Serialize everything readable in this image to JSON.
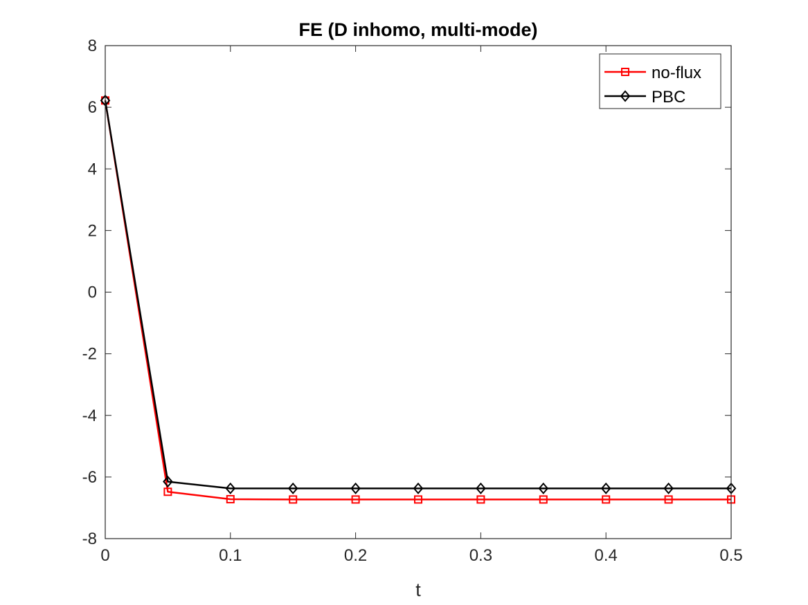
{
  "chart_data": {
    "type": "line",
    "title": "FE (D inhomo, multi-mode)",
    "xlabel": "t",
    "ylabel": "",
    "xlim": [
      0,
      0.5
    ],
    "ylim": [
      -8,
      8
    ],
    "x_ticks": [
      "0",
      "0.1",
      "0.2",
      "0.3",
      "0.4",
      "0.5"
    ],
    "y_ticks": [
      "-8",
      "-6",
      "-4",
      "-2",
      "0",
      "2",
      "4",
      "6",
      "8"
    ],
    "x": [
      0,
      0.05,
      0.1,
      0.15,
      0.2,
      0.25,
      0.3,
      0.35,
      0.4,
      0.45,
      0.5
    ],
    "series": [
      {
        "name": "no-flux",
        "color": "#ff0000",
        "marker": "square",
        "values": [
          6.22,
          -6.48,
          -6.72,
          -6.73,
          -6.73,
          -6.73,
          -6.73,
          -6.73,
          -6.73,
          -6.73,
          -6.73
        ]
      },
      {
        "name": "PBC",
        "color": "#000000",
        "marker": "diamond",
        "values": [
          6.22,
          -6.15,
          -6.37,
          -6.37,
          -6.37,
          -6.37,
          -6.37,
          -6.37,
          -6.37,
          -6.37,
          -6.37
        ]
      }
    ],
    "grid": false,
    "legend_position": "top-right"
  }
}
